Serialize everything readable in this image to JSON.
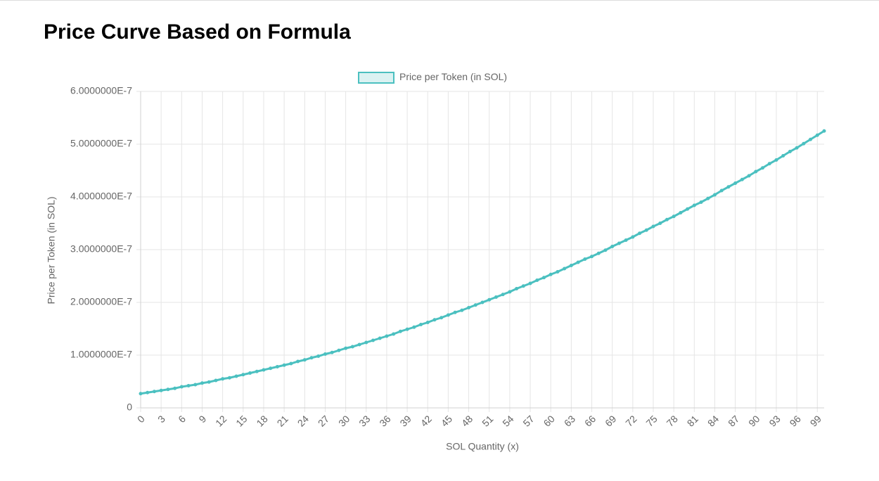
{
  "chart_data": {
    "type": "line",
    "title": "Price Curve Based on Formula",
    "xlabel": "SOL Quantity (x)",
    "ylabel": "Price per Token (in SOL)",
    "x": [
      0,
      1,
      2,
      3,
      4,
      5,
      6,
      7,
      8,
      9,
      10,
      11,
      12,
      13,
      14,
      15,
      16,
      17,
      18,
      19,
      20,
      21,
      22,
      23,
      24,
      25,
      26,
      27,
      28,
      29,
      30,
      31,
      32,
      33,
      34,
      35,
      36,
      37,
      38,
      39,
      40,
      41,
      42,
      43,
      44,
      45,
      46,
      47,
      48,
      49,
      50,
      51,
      52,
      53,
      54,
      55,
      56,
      57,
      58,
      59,
      60,
      61,
      62,
      63,
      64,
      65,
      66,
      67,
      68,
      69,
      70,
      71,
      72,
      73,
      74,
      75,
      76,
      77,
      78,
      79,
      80,
      81,
      82,
      83,
      84,
      85,
      86,
      87,
      88,
      89,
      90,
      91,
      92,
      93,
      94,
      95,
      96,
      97,
      98,
      99,
      100
    ],
    "series": [
      {
        "name": "Price per Token (in SOL)",
        "color": "#4bc0c0",
        "fill": "rgba(75,192,192,0.2)",
        "values": [
          2.7e-08,
          2.9e-08,
          3.1e-08,
          3.3e-08,
          3.5e-08,
          3.7e-08,
          4e-08,
          4.2e-08,
          4.4e-08,
          4.7e-08,
          4.9e-08,
          5.2e-08,
          5.5e-08,
          5.7e-08,
          6e-08,
          6.3e-08,
          6.6e-08,
          6.9e-08,
          7.2e-08,
          7.5e-08,
          7.8e-08,
          8.1e-08,
          8.4e-08,
          8.8e-08,
          9.1e-08,
          9.5e-08,
          9.8e-08,
          1.02e-07,
          1.05e-07,
          1.09e-07,
          1.13e-07,
          1.16e-07,
          1.2e-07,
          1.24e-07,
          1.28e-07,
          1.32e-07,
          1.36e-07,
          1.4e-07,
          1.45e-07,
          1.49e-07,
          1.53e-07,
          1.58e-07,
          1.62e-07,
          1.67e-07,
          1.71e-07,
          1.76e-07,
          1.81e-07,
          1.85e-07,
          1.9e-07,
          1.95e-07,
          2e-07,
          2.05e-07,
          2.1e-07,
          2.15e-07,
          2.2e-07,
          2.26e-07,
          2.31e-07,
          2.36e-07,
          2.42e-07,
          2.47e-07,
          2.53e-07,
          2.58e-07,
          2.64e-07,
          2.7e-07,
          2.76e-07,
          2.82e-07,
          2.87e-07,
          2.93e-07,
          2.99e-07,
          3.06e-07,
          3.12e-07,
          3.18e-07,
          3.24e-07,
          3.31e-07,
          3.37e-07,
          3.44e-07,
          3.5e-07,
          3.57e-07,
          3.63e-07,
          3.7e-07,
          3.77e-07,
          3.84e-07,
          3.9e-07,
          3.97e-07,
          4.04e-07,
          4.12e-07,
          4.19e-07,
          4.26e-07,
          4.33e-07,
          4.4e-07,
          4.48e-07,
          4.55e-07,
          4.63e-07,
          4.7e-07,
          4.78e-07,
          4.86e-07,
          4.93e-07,
          5.01e-07,
          5.09e-07,
          5.17e-07,
          5.25e-07
        ]
      }
    ],
    "xlim": [
      0,
      100
    ],
    "xticks": [
      0,
      3,
      6,
      9,
      12,
      15,
      18,
      21,
      24,
      27,
      30,
      33,
      36,
      39,
      42,
      45,
      48,
      51,
      54,
      57,
      60,
      63,
      66,
      69,
      72,
      75,
      78,
      81,
      84,
      87,
      90,
      93,
      96,
      99
    ],
    "ylim": [
      0,
      6e-07
    ],
    "yticks": [
      0,
      {
        "value": 1e-07,
        "label": "1.0000000E-7"
      },
      {
        "value": 2e-07,
        "label": "2.0000000E-7"
      },
      {
        "value": 3e-07,
        "label": "3.0000000E-7"
      },
      {
        "value": 4e-07,
        "label": "4.0000000E-7"
      },
      {
        "value": 5e-07,
        "label": "5.0000000E-7"
      },
      {
        "value": 6e-07,
        "label": "6.0000000E-7"
      }
    ],
    "grid": true,
    "legend": "top"
  }
}
